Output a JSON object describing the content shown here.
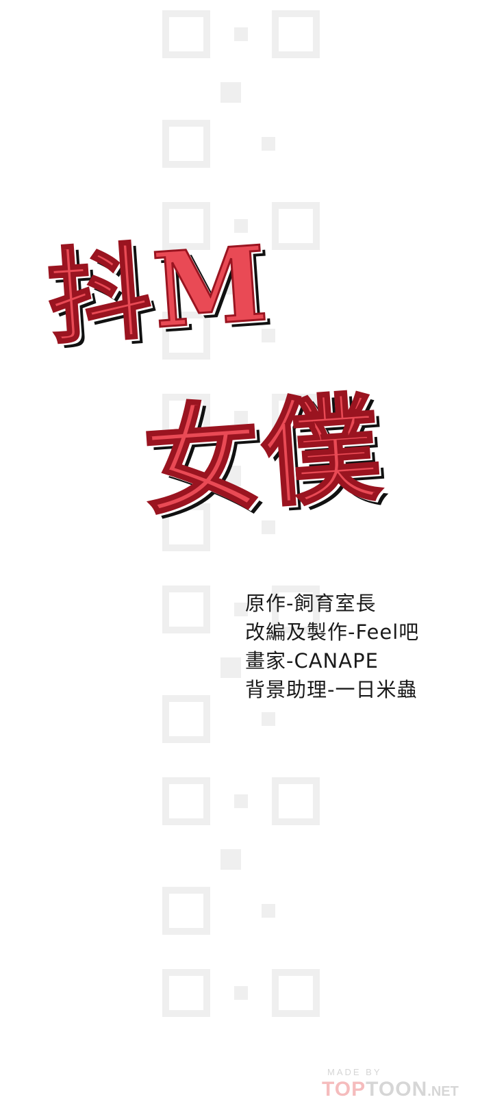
{
  "title": {
    "line1": "抖M",
    "line2": "女僕",
    "fill_color": "#e94a55",
    "outline_color": "#9a1420",
    "shadow_color": "#111111"
  },
  "credits": [
    "原作-飼育室長",
    "改編及製作-Feel吧",
    "畫家-CANAPE",
    "背景助理-一日米蟲"
  ],
  "brand": {
    "made_by": "MADE BY",
    "top": "TOP",
    "toon": "TOON",
    "net": ".NET"
  }
}
